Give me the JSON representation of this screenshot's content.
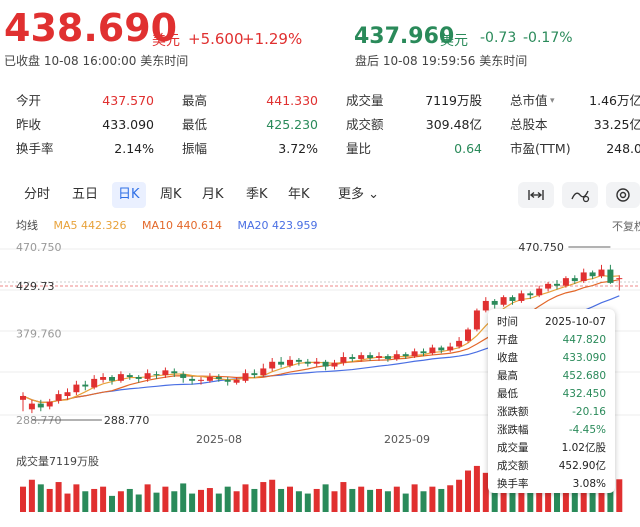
{
  "quote": {
    "price": "438.690",
    "unit": "美元",
    "change": "+5.600",
    "change_pct": "+1.29%",
    "status": "已收盘 10-08 16:00:00 美东时间"
  },
  "after_hours": {
    "price": "437.960",
    "unit": "美元",
    "change": "-0.73",
    "change_pct": "-0.17%",
    "status": "盘后 10-08 19:59:56 美东时间"
  },
  "stats": [
    {
      "label": "今开",
      "value": "437.570",
      "color": "#e03030"
    },
    {
      "label": "最高",
      "value": "441.330",
      "color": "#e03030"
    },
    {
      "label": "成交量",
      "value": "7119万股",
      "color": "#222"
    },
    {
      "label": "总市值",
      "value": "1.46万亿",
      "color": "#222"
    },
    {
      "label": "昨收",
      "value": "433.090",
      "color": "#222"
    },
    {
      "label": "最低",
      "value": "425.230",
      "color": "#2a8a5a"
    },
    {
      "label": "成交额",
      "value": "309.48亿",
      "color": "#222"
    },
    {
      "label": "总股本",
      "value": "33.25亿",
      "color": "#222"
    },
    {
      "label": "换手率",
      "value": "2.14%",
      "color": "#222"
    },
    {
      "label": "振幅",
      "value": "3.72%",
      "color": "#222"
    },
    {
      "label": "量比",
      "value": "0.64",
      "color": "#2a8a5a"
    },
    {
      "label": "市盈(TTM)",
      "value": "248.0",
      "color": "#222"
    }
  ],
  "tabs": [
    "分时",
    "五日",
    "日K",
    "周K",
    "月K",
    "季K",
    "年K",
    "更多"
  ],
  "active_tab": "日K",
  "tools": [
    "fit-width-icon",
    "draw-icon",
    "indicator-icon"
  ],
  "no_adjust_label": "不复权",
  "ma": {
    "label": "均线",
    "ma5": "MA5 442.326",
    "ma10": "MA10 440.614",
    "ma20": "MA20 423.959",
    "ma5_color": "#e8a23a",
    "ma10_color": "#e3682a",
    "ma20_color": "#4a6fe3"
  },
  "price_axis": {
    "ticks": [
      "470.750",
      "429.73",
      "379.760",
      "288.770"
    ],
    "max_label": "470.750",
    "min_label": "288.770",
    "current_label": "429.73"
  },
  "x_axis": [
    "2025-08",
    "2025-09"
  ],
  "volume_label": "成交量7119万股",
  "tooltip": {
    "rows": [
      {
        "l": "时间",
        "v": "2025-10-07",
        "c": "#222"
      },
      {
        "l": "开盘",
        "v": "447.820",
        "c": "#2a8a5a"
      },
      {
        "l": "收盘",
        "v": "433.090",
        "c": "#2a8a5a"
      },
      {
        "l": "最高",
        "v": "452.680",
        "c": "#2a8a5a"
      },
      {
        "l": "最低",
        "v": "432.450",
        "c": "#2a8a5a"
      },
      {
        "l": "涨跌额",
        "v": "-20.16",
        "c": "#2a8a5a"
      },
      {
        "l": "涨跌幅",
        "v": "-4.45%",
        "c": "#2a8a5a"
      },
      {
        "l": "成交量",
        "v": "1.02亿股",
        "c": "#222"
      },
      {
        "l": "成交额",
        "v": "452.90亿",
        "c": "#222"
      },
      {
        "l": "换手率",
        "v": "3.08%",
        "c": "#222"
      }
    ]
  },
  "colors": {
    "up": "#e03030",
    "down": "#2a8a5a"
  },
  "chart_data": {
    "type": "candlestick",
    "ylim": [
      288.77,
      470.75
    ],
    "candles": [
      [
        310,
        314,
        298,
        318
      ],
      [
        300,
        306,
        296,
        310
      ],
      [
        306,
        302,
        298,
        310
      ],
      [
        303,
        308,
        300,
        311
      ],
      [
        309,
        316,
        306,
        320
      ],
      [
        314,
        318,
        310,
        322
      ],
      [
        318,
        326,
        315,
        330
      ],
      [
        326,
        324,
        320,
        330
      ],
      [
        323,
        332,
        321,
        336
      ],
      [
        331,
        334,
        328,
        338
      ],
      [
        334,
        330,
        326,
        336
      ],
      [
        330,
        337,
        328,
        340
      ],
      [
        336,
        334,
        331,
        338
      ],
      [
        334,
        332,
        328,
        336
      ],
      [
        332,
        338,
        329,
        342
      ],
      [
        337,
        336,
        332,
        340
      ],
      [
        336,
        341,
        333,
        344
      ],
      [
        340,
        338,
        334,
        343
      ],
      [
        337,
        333,
        328,
        340
      ],
      [
        332,
        330,
        326,
        335
      ],
      [
        330,
        331,
        326,
        334
      ],
      [
        330,
        334,
        328,
        338
      ],
      [
        334,
        332,
        329,
        337
      ],
      [
        331,
        329,
        325,
        334
      ],
      [
        328,
        331,
        326,
        334
      ],
      [
        330,
        338,
        328,
        342
      ],
      [
        338,
        336,
        333,
        342
      ],
      [
        336,
        343,
        334,
        348
      ],
      [
        343,
        350,
        340,
        354
      ],
      [
        350,
        347,
        344,
        355
      ],
      [
        346,
        352,
        344,
        356
      ],
      [
        352,
        350,
        346,
        354
      ],
      [
        350,
        348,
        345,
        353
      ],
      [
        348,
        350,
        345,
        354
      ],
      [
        350,
        345,
        341,
        352
      ],
      [
        345,
        349,
        342,
        352
      ],
      [
        349,
        355,
        346,
        360
      ],
      [
        355,
        353,
        350,
        358
      ],
      [
        353,
        357,
        350,
        360
      ],
      [
        357,
        354,
        351,
        360
      ],
      [
        354,
        356,
        351,
        360
      ],
      [
        356,
        353,
        350,
        358
      ],
      [
        353,
        358,
        351,
        362
      ],
      [
        358,
        356,
        353,
        360
      ],
      [
        356,
        361,
        354,
        364
      ],
      [
        361,
        359,
        356,
        364
      ],
      [
        359,
        365,
        357,
        368
      ],
      [
        365,
        362,
        359,
        367
      ],
      [
        362,
        366,
        360,
        370
      ],
      [
        366,
        372,
        364,
        376
      ],
      [
        372,
        384,
        370,
        386
      ],
      [
        384,
        404,
        382,
        406
      ],
      [
        404,
        414,
        402,
        418
      ],
      [
        414,
        410,
        406,
        416
      ],
      [
        410,
        418,
        408,
        420
      ],
      [
        418,
        414,
        410,
        420
      ],
      [
        414,
        422,
        412,
        425
      ],
      [
        422,
        420,
        416,
        424
      ],
      [
        420,
        427,
        418,
        430
      ],
      [
        427,
        432,
        424,
        434
      ],
      [
        432,
        430,
        426,
        436
      ],
      [
        430,
        438,
        428,
        440
      ],
      [
        438,
        435,
        432,
        441
      ],
      [
        435,
        444,
        433,
        448
      ],
      [
        444,
        440,
        437,
        446
      ],
      [
        440,
        447,
        438,
        452
      ],
      [
        447,
        433,
        432,
        452
      ],
      [
        437,
        438,
        425,
        441
      ]
    ],
    "volumes": [
      0.55,
      0.7,
      0.6,
      0.5,
      0.65,
      0.4,
      0.6,
      0.45,
      0.5,
      0.55,
      0.35,
      0.45,
      0.5,
      0.38,
      0.6,
      0.42,
      0.55,
      0.45,
      0.62,
      0.4,
      0.48,
      0.52,
      0.4,
      0.55,
      0.45,
      0.6,
      0.5,
      0.65,
      0.7,
      0.5,
      0.55,
      0.45,
      0.4,
      0.5,
      0.6,
      0.45,
      0.65,
      0.5,
      0.55,
      0.48,
      0.5,
      0.45,
      0.55,
      0.4,
      0.6,
      0.45,
      0.55,
      0.5,
      0.58,
      0.7,
      0.9,
      1.0,
      0.85,
      0.7,
      0.65,
      0.6,
      0.7,
      0.55,
      0.6,
      0.65,
      0.55,
      0.6,
      0.5,
      0.7,
      0.55,
      0.75,
      1.02,
      0.71
    ]
  }
}
